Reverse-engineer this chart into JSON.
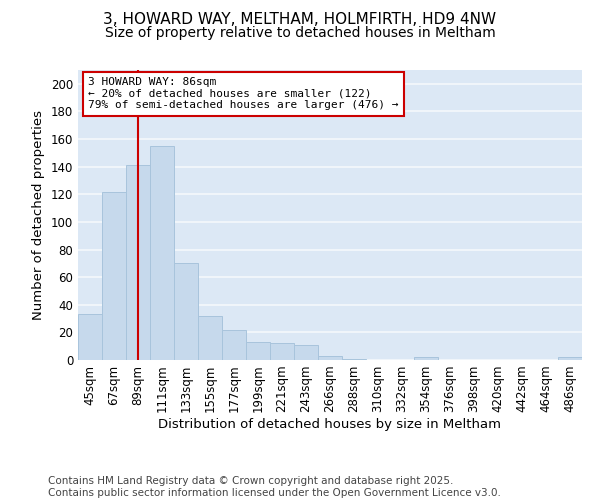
{
  "title": "3, HOWARD WAY, MELTHAM, HOLMFIRTH, HD9 4NW",
  "subtitle": "Size of property relative to detached houses in Meltham",
  "xlabel": "Distribution of detached houses by size in Meltham",
  "ylabel": "Number of detached properties",
  "categories": [
    "45sqm",
    "67sqm",
    "89sqm",
    "111sqm",
    "133sqm",
    "155sqm",
    "177sqm",
    "199sqm",
    "221sqm",
    "243sqm",
    "266sqm",
    "288sqm",
    "310sqm",
    "332sqm",
    "354sqm",
    "376sqm",
    "398sqm",
    "420sqm",
    "442sqm",
    "464sqm",
    "486sqm"
  ],
  "values": [
    33,
    122,
    141,
    155,
    70,
    32,
    22,
    13,
    12,
    11,
    3,
    1,
    0,
    0,
    2,
    0,
    0,
    0,
    0,
    0,
    2
  ],
  "bar_color": "#c6d9ec",
  "bar_edgecolor": "#a8c4dc",
  "vline_x": 2.0,
  "vline_color": "#cc0000",
  "annotation_text": "3 HOWARD WAY: 86sqm\n← 20% of detached houses are smaller (122)\n79% of semi-detached houses are larger (476) →",
  "annotation_box_edgecolor": "#cc0000",
  "background_color": "#dce8f5",
  "grid_color": "#f5f8fc",
  "ylim": [
    0,
    210
  ],
  "yticks": [
    0,
    20,
    40,
    60,
    80,
    100,
    120,
    140,
    160,
    180,
    200
  ],
  "footer": "Contains HM Land Registry data © Crown copyright and database right 2025.\nContains public sector information licensed under the Open Government Licence v3.0.",
  "title_fontsize": 11,
  "subtitle_fontsize": 10,
  "axis_label_fontsize": 9.5,
  "tick_fontsize": 8.5,
  "annotation_fontsize": 8,
  "footer_fontsize": 7.5
}
